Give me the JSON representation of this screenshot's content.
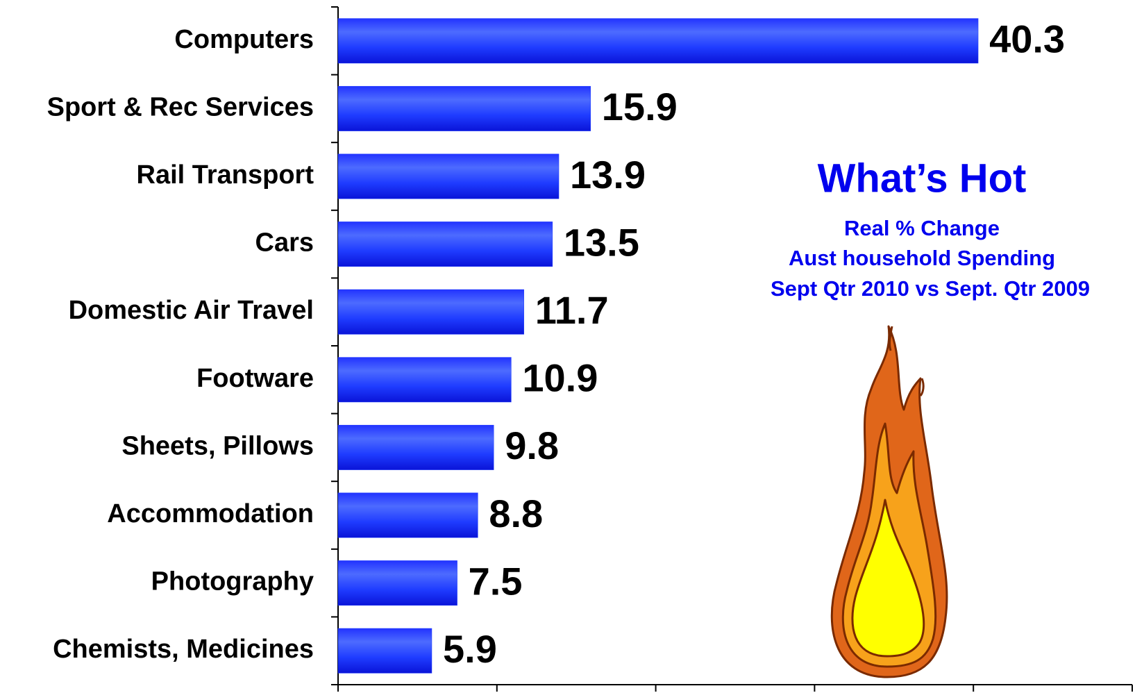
{
  "chart_data": {
    "type": "hbar",
    "title": "What’s Hot",
    "subtitle": [
      "Real % Change",
      "Aust household Spending",
      "Sept Qtr 2010 vs Sept. Qtr 2009"
    ],
    "categories": [
      "Computers",
      "Sport & Rec Services",
      "Rail Transport",
      "Cars",
      "Domestic Air Travel",
      "Footware",
      "Sheets, Pillows",
      "Accommodation",
      "Photography",
      "Chemists, Medicines"
    ],
    "values": [
      40.3,
      15.9,
      13.9,
      13.5,
      11.7,
      10.9,
      9.8,
      8.8,
      7.5,
      5.9
    ],
    "color": "#1f3cff",
    "xlim": [
      0,
      50
    ],
    "xticks": [
      0,
      10,
      20,
      30,
      40,
      50
    ],
    "grid": false
  }
}
